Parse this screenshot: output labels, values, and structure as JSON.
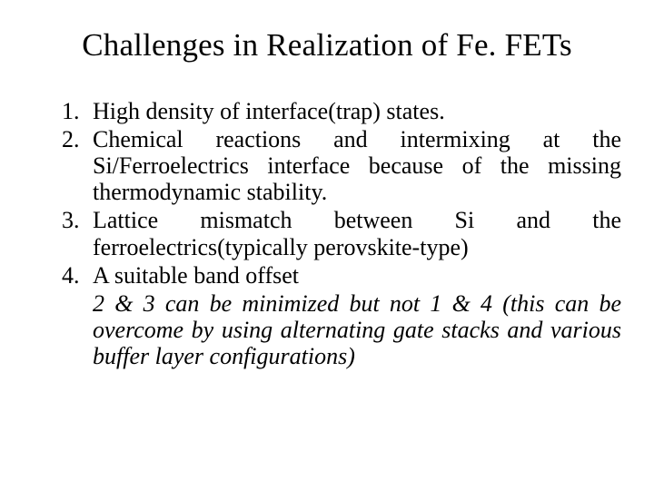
{
  "title": "Challenges in Realization of Fe. FETs",
  "items": [
    "High density of interface(trap) states.",
    "Chemical reactions and intermixing at the Si/Ferroelectrics interface because of the missing thermodynamic stability.",
    "Lattice mismatch between Si and the ferroelectrics(typically perovskite-type)",
    "A suitable band offset"
  ],
  "note": "2 & 3 can be minimized but not 1 & 4 (this can be overcome by using alternating gate stacks and various buffer layer configurations)",
  "style": {
    "background_color": "#ffffff",
    "text_color": "#000000",
    "font_family": "Palatino Linotype, Book Antiqua, Palatino, Georgia, serif",
    "title_fontsize": 35,
    "body_fontsize": 26,
    "line_height": 1.12,
    "list_type": "decimal",
    "text_align": "justify",
    "note_style": "italic"
  }
}
